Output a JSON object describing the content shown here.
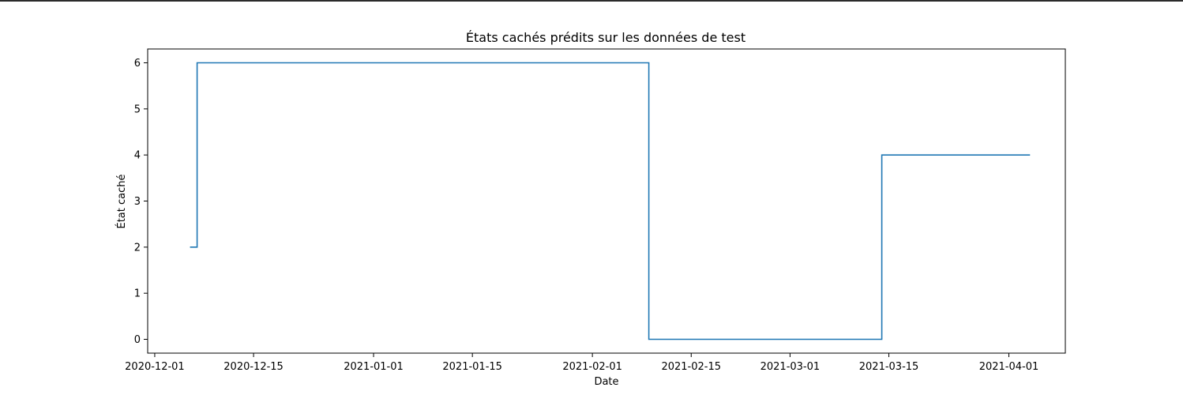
{
  "chart_data": {
    "type": "line",
    "drawstyle": "steps-post",
    "title": "États cachés prédits sur les données de test",
    "xlabel": "Date",
    "ylabel": "État caché",
    "xlim": [
      "2020-11-30",
      "2021-04-09"
    ],
    "ylim": [
      -0.3,
      6.3
    ],
    "xticks": [
      "2020-12-01",
      "2020-12-15",
      "2021-01-01",
      "2021-01-15",
      "2021-02-01",
      "2021-02-15",
      "2021-03-01",
      "2021-03-15",
      "2021-04-01"
    ],
    "yticks": [
      0,
      1,
      2,
      3,
      4,
      5,
      6
    ],
    "grid": false,
    "series": [
      {
        "color": "#1f77b4",
        "x": [
          "2020-12-06",
          "2020-12-07",
          "2021-02-09",
          "2021-03-14",
          "2021-04-04"
        ],
        "y": [
          2,
          6,
          0,
          4,
          4
        ]
      }
    ]
  }
}
